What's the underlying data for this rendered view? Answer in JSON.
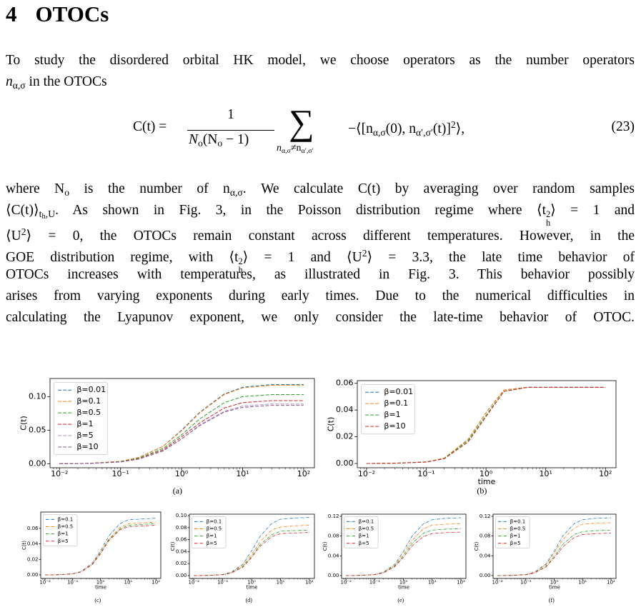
{
  "heading": {
    "number": "4",
    "title": "OTOCs"
  },
  "intro": {
    "line1": "To study the disordered orbital HK model, we choose operators as the number operators",
    "line2": [
      "n",
      "α,σ",
      " in the OTOCs"
    ]
  },
  "equation": {
    "lhs": "C(t) =",
    "numerator": "1",
    "denominator": [
      "N",
      "o",
      "(N",
      "o",
      " − 1)"
    ],
    "sum": "∑",
    "sum_index": [
      "n",
      "α,σ",
      "≠n",
      "α′,σ′"
    ],
    "summand": [
      "−⟨[n",
      "α,σ",
      "(0), n",
      "α′,σ′",
      "(t)]",
      "2",
      "⟩,"
    ],
    "number": "(23)"
  },
  "body": {
    "lines": [
      [
        "where N",
        "o",
        " is the number of n",
        "α,σ",
        ". We calculate C(t) by averaging over random samples"
      ],
      [
        "⟨C(t)⟩",
        "t",
        "h",
        ",U",
        ". As shown in Fig. 3, in the Poisson distribution regime where ⟨t",
        "2",
        "h",
        "⟩ = 1 and"
      ],
      [
        "⟨U",
        "2",
        "⟩ = 0, the OTOCs remain constant across different temperatures. However, in the"
      ],
      [
        "GOE distribution regime, with ⟨t",
        "2",
        "h",
        "⟩ = 1 and ⟨U",
        "2",
        "⟩ = 3.3, the late time behavior of"
      ],
      [
        "OTOCs increases with temperatures, as illustrated in Fig. 3. This behavior possibly"
      ],
      [
        "arises from varying exponents during early times. Due to the numerical difficulties in"
      ],
      [
        "calculating the Lyapunov exponent, we only consider the late-time behavior of OTOC."
      ]
    ]
  },
  "chart_data": [
    {
      "type": "line",
      "caption": "(a)",
      "ylabel": "C(t)",
      "log_x": true,
      "legend": "upper left",
      "linestyle": "dashed",
      "x": [
        0.01,
        0.03,
        0.1,
        0.2,
        0.5,
        1,
        2,
        5,
        10,
        30,
        100
      ],
      "xlim": [
        0.007,
        150
      ],
      "ylim": [
        -0.006,
        0.127
      ],
      "xticks": [
        {
          "value": 0.01,
          "label": "10⁻²"
        },
        {
          "value": 0.1,
          "label": "10⁻¹"
        },
        {
          "value": 1,
          "label": "10⁰"
        },
        {
          "value": 10,
          "label": "10¹"
        },
        {
          "value": 100,
          "label": "10²"
        }
      ],
      "yticks": [
        {
          "value": 0,
          "label": "0.00"
        },
        {
          "value": 0.05,
          "label": "0.05"
        },
        {
          "value": 0.1,
          "label": "0.10"
        }
      ],
      "series": [
        {
          "name": "β=0.01",
          "color": "#1f77b4",
          "values": [
            0,
            0.0006,
            0.0035,
            0.0094,
            0.026,
            0.05,
            0.077,
            0.104,
            0.114,
            0.118,
            0.118
          ]
        },
        {
          "name": "β=0.1",
          "color": "#ff7f0e",
          "values": [
            0,
            0.0006,
            0.0035,
            0.0094,
            0.026,
            0.049,
            0.076,
            0.103,
            0.113,
            0.117,
            0.117
          ]
        },
        {
          "name": "β=0.5",
          "color": "#2ca02c",
          "values": [
            0,
            0.0005,
            0.0031,
            0.0082,
            0.023,
            0.043,
            0.067,
            0.091,
            0.1,
            0.103,
            0.103
          ]
        },
        {
          "name": "β=1",
          "color": "#d62728",
          "values": [
            0,
            0.0005,
            0.0028,
            0.0075,
            0.021,
            0.04,
            0.061,
            0.083,
            0.091,
            0.094,
            0.094
          ]
        },
        {
          "name": "β=5",
          "color": "#b58fc0",
          "values": [
            0,
            0.0004,
            0.0027,
            0.0071,
            0.02,
            0.037,
            0.058,
            0.078,
            0.086,
            0.089,
            0.089
          ]
        },
        {
          "name": "β=10",
          "color": "#8c5a8b",
          "values": [
            0,
            0.0004,
            0.0026,
            0.007,
            0.019,
            0.037,
            0.057,
            0.077,
            0.084,
            0.087,
            0.087
          ]
        }
      ]
    },
    {
      "type": "line",
      "caption": "(b)",
      "ylabel": "C(t)",
      "xlabel": "time",
      "log_x": true,
      "legend": "upper left",
      "linestyle": "dashed",
      "x": [
        0.01,
        0.03,
        0.1,
        0.2,
        0.5,
        1,
        2,
        5,
        10,
        30,
        100
      ],
      "xlim": [
        0.007,
        150
      ],
      "ylim": [
        -0.0032,
        0.062
      ],
      "xticks": [
        {
          "value": 0.01,
          "label": "10⁻²"
        },
        {
          "value": 0.1,
          "label": "10⁻¹"
        },
        {
          "value": 1,
          "label": "10⁰"
        },
        {
          "value": 10,
          "label": "10¹"
        },
        {
          "value": 100,
          "label": "10²"
        }
      ],
      "yticks": [
        {
          "value": 0,
          "label": "0.00"
        },
        {
          "value": 0.02,
          "label": "0.02"
        },
        {
          "value": 0.04,
          "label": "0.04"
        },
        {
          "value": 0.06,
          "label": "0.06"
        }
      ],
      "series": [
        {
          "name": "β=0.01",
          "color": "#1f77b4",
          "values": [
            0,
            0.0002,
            0.0012,
            0.004,
            0.018,
            0.038,
            0.055,
            0.057,
            0.057,
            0.057,
            0.057
          ]
        },
        {
          "name": "β=0.1",
          "color": "#ff7f0e",
          "values": [
            0,
            0.0002,
            0.0012,
            0.004,
            0.018,
            0.038,
            0.055,
            0.057,
            0.057,
            0.057,
            0.057
          ]
        },
        {
          "name": "β=1",
          "color": "#2ca02c",
          "values": [
            0,
            0.0002,
            0.0011,
            0.0037,
            0.017,
            0.036,
            0.054,
            0.057,
            0.057,
            0.057,
            0.057
          ]
        },
        {
          "name": "β=10",
          "color": "#d62728",
          "values": [
            0,
            0.0002,
            0.001,
            0.0035,
            0.016,
            0.035,
            0.054,
            0.057,
            0.057,
            0.057,
            0.057
          ]
        }
      ]
    },
    {
      "type": "line",
      "caption": "(c)",
      "ylabel": "C(t)",
      "xlabel": "time",
      "log_x": true,
      "legend": "upper left",
      "linestyle": "dashdot",
      "x": [
        0.01,
        0.03,
        0.1,
        0.2,
        0.5,
        1,
        2,
        5,
        10,
        30,
        100
      ],
      "xlim": [
        0.007,
        150
      ],
      "ylim": [
        -0.0046,
        0.081
      ],
      "xticks": [
        {
          "value": 0.01,
          "label": "10⁻²"
        },
        {
          "value": 0.1,
          "label": "10⁻¹"
        },
        {
          "value": 1,
          "label": "10⁰"
        },
        {
          "value": 10,
          "label": "10¹"
        },
        {
          "value": 100,
          "label": "10²"
        }
      ],
      "yticks": [
        {
          "value": 0,
          "label": "0.00"
        },
        {
          "value": 0.02,
          "label": "0.02"
        },
        {
          "value": 0.04,
          "label": "0.04"
        },
        {
          "value": 0.06,
          "label": "0.06"
        }
      ],
      "series": [
        {
          "name": "β=0.1",
          "color": "#1f77b4",
          "values": [
            0,
            0.0002,
            0.0015,
            0.0044,
            0.015,
            0.031,
            0.05,
            0.066,
            0.071,
            0.072,
            0.073
          ]
        },
        {
          "name": "β=0.5",
          "color": "#ff7f0e",
          "values": [
            0,
            0.0002,
            0.0014,
            0.0041,
            0.014,
            0.029,
            0.046,
            0.061,
            0.066,
            0.067,
            0.068
          ]
        },
        {
          "name": "β=1",
          "color": "#2ca02c",
          "values": [
            0,
            0.0002,
            0.0013,
            0.004,
            0.013,
            0.028,
            0.045,
            0.059,
            0.064,
            0.065,
            0.066
          ]
        },
        {
          "name": "β=5",
          "color": "#d62728",
          "values": [
            0,
            0.0002,
            0.0013,
            0.0038,
            0.013,
            0.027,
            0.044,
            0.058,
            0.062,
            0.063,
            0.064
          ]
        }
      ]
    },
    {
      "type": "line",
      "caption": "(d)",
      "ylabel": "C(t)",
      "xlabel": "time",
      "log_x": true,
      "legend": "upper left",
      "linestyle": "dashdot",
      "x": [
        0.01,
        0.03,
        0.1,
        0.2,
        0.5,
        1,
        2,
        5,
        10,
        30,
        100
      ],
      "xlim": [
        0.007,
        150
      ],
      "ylim": [
        -0.0048,
        0.1024
      ],
      "xticks": [
        {
          "value": 0.01,
          "label": "10⁻²"
        },
        {
          "value": 0.1,
          "label": "10⁻¹"
        },
        {
          "value": 1,
          "label": "10⁰"
        },
        {
          "value": 10,
          "label": "10¹"
        },
        {
          "value": 100,
          "label": "10²"
        }
      ],
      "yticks": [
        {
          "value": 0,
          "label": "0.00"
        },
        {
          "value": 0.02,
          "label": "0.02"
        },
        {
          "value": 0.04,
          "label": "0.04"
        },
        {
          "value": 0.06,
          "label": "0.06"
        },
        {
          "value": 0.08,
          "label": "0.08"
        },
        {
          "value": 0.1,
          "label": "0.10"
        }
      ],
      "series": [
        {
          "name": "β=0.1",
          "color": "#1f77b4",
          "values": [
            0,
            0.0003,
            0.0019,
            0.0058,
            0.019,
            0.041,
            0.066,
            0.087,
            0.094,
            0.096,
            0.097
          ]
        },
        {
          "name": "β=0.5",
          "color": "#ff7f0e",
          "values": [
            0,
            0.0003,
            0.0017,
            0.005,
            0.017,
            0.035,
            0.057,
            0.076,
            0.081,
            0.083,
            0.084
          ]
        },
        {
          "name": "β=1",
          "color": "#2ca02c",
          "values": [
            0,
            0.0002,
            0.0015,
            0.0046,
            0.015,
            0.032,
            0.052,
            0.068,
            0.074,
            0.075,
            0.076
          ]
        },
        {
          "name": "β=5",
          "color": "#d62728",
          "values": [
            0,
            0.0002,
            0.0014,
            0.0043,
            0.014,
            0.03,
            0.049,
            0.065,
            0.07,
            0.071,
            0.072
          ]
        }
      ]
    },
    {
      "type": "line",
      "caption": "(e)",
      "ylabel": "C(t)",
      "xlabel": "time",
      "log_x": true,
      "legend": "upper left",
      "linestyle": "dashdot",
      "x": [
        0.01,
        0.03,
        0.1,
        0.2,
        0.5,
        1,
        2,
        5,
        10,
        30,
        100
      ],
      "xlim": [
        0.007,
        150
      ],
      "ylim": [
        -0.0058,
        0.1243
      ],
      "xticks": [
        {
          "value": 0.01,
          "label": "10⁻²"
        },
        {
          "value": 0.1,
          "label": "10⁻¹"
        },
        {
          "value": 1,
          "label": "10⁰"
        },
        {
          "value": 10,
          "label": "10¹"
        },
        {
          "value": 100,
          "label": "10²"
        }
      ],
      "yticks": [
        {
          "value": 0,
          "label": "0.00"
        },
        {
          "value": 0.04,
          "label": "0.04"
        },
        {
          "value": 0.08,
          "label": "0.08"
        },
        {
          "value": 0.12,
          "label": "0.12"
        }
      ],
      "series": [
        {
          "name": "β=0.1",
          "color": "#1f77b4",
          "values": [
            0,
            0.0004,
            0.0023,
            0.007,
            0.023,
            0.049,
            0.08,
            0.105,
            0.113,
            0.116,
            0.117
          ]
        },
        {
          "name": "β=0.5",
          "color": "#ff7f0e",
          "values": [
            0,
            0.0003,
            0.0021,
            0.0063,
            0.021,
            0.044,
            0.071,
            0.095,
            0.102,
            0.104,
            0.105
          ]
        },
        {
          "name": "β=1",
          "color": "#2ca02c",
          "values": [
            0,
            0.0003,
            0.0019,
            0.0057,
            0.019,
            0.04,
            0.065,
            0.086,
            0.092,
            0.094,
            0.095
          ]
        },
        {
          "name": "β=5",
          "color": "#d62728",
          "values": [
            0,
            0.0003,
            0.0018,
            0.0053,
            0.018,
            0.037,
            0.06,
            0.079,
            0.085,
            0.087,
            0.088
          ]
        }
      ]
    },
    {
      "type": "line",
      "caption": "(f)",
      "ylabel": "C(t)",
      "xlabel": "time",
      "log_x": true,
      "legend": "upper left",
      "linestyle": "dashdot",
      "x": [
        0.01,
        0.03,
        0.1,
        0.2,
        0.5,
        1,
        2,
        5,
        10,
        30,
        100
      ],
      "xlim": [
        0.007,
        150
      ],
      "ylim": [
        -0.0058,
        0.1243
      ],
      "xticks": [
        {
          "value": 0.01,
          "label": "10⁻²"
        },
        {
          "value": 0.1,
          "label": "10⁻¹"
        },
        {
          "value": 1,
          "label": "10⁰"
        },
        {
          "value": 10,
          "label": "10¹"
        },
        {
          "value": 100,
          "label": "10²"
        }
      ],
      "yticks": [
        {
          "value": 0,
          "label": "0.00"
        },
        {
          "value": 0.04,
          "label": "0.04"
        },
        {
          "value": 0.08,
          "label": "0.08"
        },
        {
          "value": 0.12,
          "label": "0.12"
        }
      ],
      "series": [
        {
          "name": "β=0.1",
          "color": "#1f77b4",
          "values": [
            0,
            0.0004,
            0.0023,
            0.007,
            0.023,
            0.049,
            0.08,
            0.105,
            0.113,
            0.116,
            0.117
          ]
        },
        {
          "name": "β=0.5",
          "color": "#ff7f0e",
          "values": [
            0,
            0.0003,
            0.0021,
            0.0064,
            0.021,
            0.045,
            0.073,
            0.096,
            0.104,
            0.106,
            0.107
          ]
        },
        {
          "name": "β=1",
          "color": "#2ca02c",
          "values": [
            0,
            0.0003,
            0.0018,
            0.0055,
            0.018,
            0.039,
            0.063,
            0.083,
            0.089,
            0.091,
            0.092
          ]
        },
        {
          "name": "β=5",
          "color": "#d62728",
          "values": [
            0,
            0.0003,
            0.0017,
            0.0052,
            0.017,
            0.036,
            0.058,
            0.077,
            0.083,
            0.085,
            0.086
          ]
        }
      ]
    }
  ]
}
